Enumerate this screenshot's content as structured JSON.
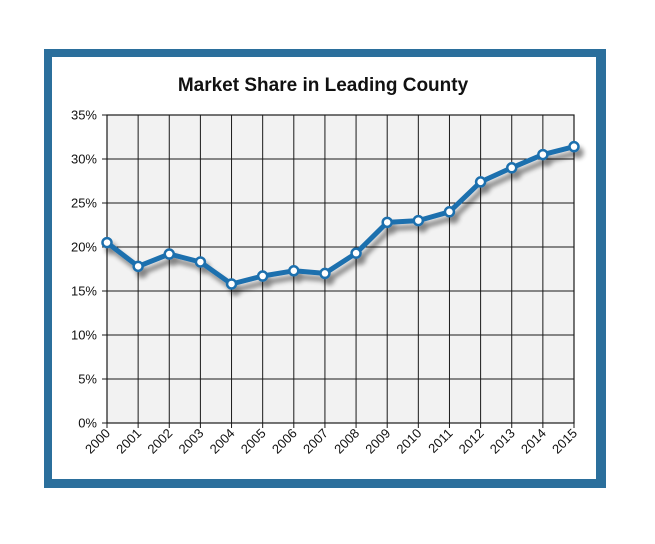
{
  "chart_data": {
    "type": "line",
    "title": "Market Share in Leading County",
    "xlabel": "",
    "ylabel": "",
    "categories": [
      "2000",
      "2001",
      "2002",
      "2003",
      "2004",
      "2005",
      "2006",
      "2007",
      "2008",
      "2009",
      "2010",
      "2011",
      "2012",
      "2013",
      "2014",
      "2015"
    ],
    "series": [
      {
        "values": [
          20.5,
          17.8,
          19.2,
          18.3,
          15.8,
          16.7,
          17.3,
          17.0,
          19.3,
          22.8,
          23.0,
          24.0,
          27.4,
          29.0,
          30.5,
          31.4
        ]
      }
    ],
    "yticks": [
      "0%",
      "5%",
      "10%",
      "15%",
      "20%",
      "25%",
      "30%",
      "35%"
    ],
    "ylim": [
      0,
      35
    ],
    "grid": true,
    "legend": "none",
    "colors": {
      "line": "#1f6fae",
      "marker_fill": "#ffffff",
      "frame": "#2b6f9c",
      "plot_bg": "#f2f2f2",
      "grid": "#1a1a1a"
    }
  }
}
